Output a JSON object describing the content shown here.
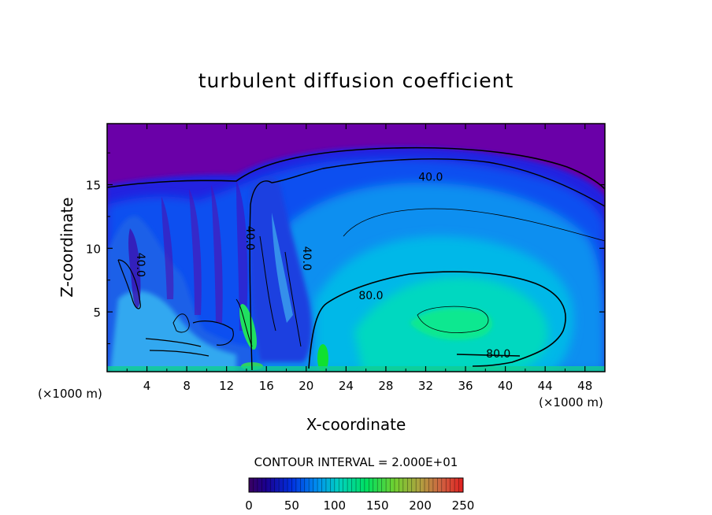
{
  "chart_data": {
    "type": "heatmap",
    "title": "turbulent diffusion coefficient",
    "xlabel": "X-coordinate",
    "ylabel": "Z-coordinate",
    "x_unit_label": "(×1000 m)",
    "z_unit_label": "(×1000 m)",
    "xlim": [
      0,
      50
    ],
    "ylim": [
      0.3,
      19.8
    ],
    "x_ticks": [
      4,
      8,
      12,
      16,
      20,
      24,
      28,
      32,
      36,
      40,
      44,
      48
    ],
    "y_ticks": [
      5,
      10,
      15
    ],
    "contour_interval_text": "CONTOUR INTERVAL = 2.000E+01",
    "contour_labels": [
      {
        "text": "40.0",
        "x": 32.5,
        "z": 15.3
      },
      {
        "text": "40.0",
        "x": 14.0,
        "z": 10.8
      },
      {
        "text": "40.0",
        "x": 19.7,
        "z": 9.2
      },
      {
        "text": "40.0",
        "x": 3.0,
        "z": 8.7
      },
      {
        "text": "80.0",
        "x": 26.5,
        "z": 6.0
      },
      {
        "text": "80.0",
        "x": 39.3,
        "z": 1.4
      }
    ],
    "colorbar": {
      "min": 0,
      "max": 250,
      "ticks": [
        0,
        50,
        100,
        150,
        200,
        250
      ]
    }
  }
}
